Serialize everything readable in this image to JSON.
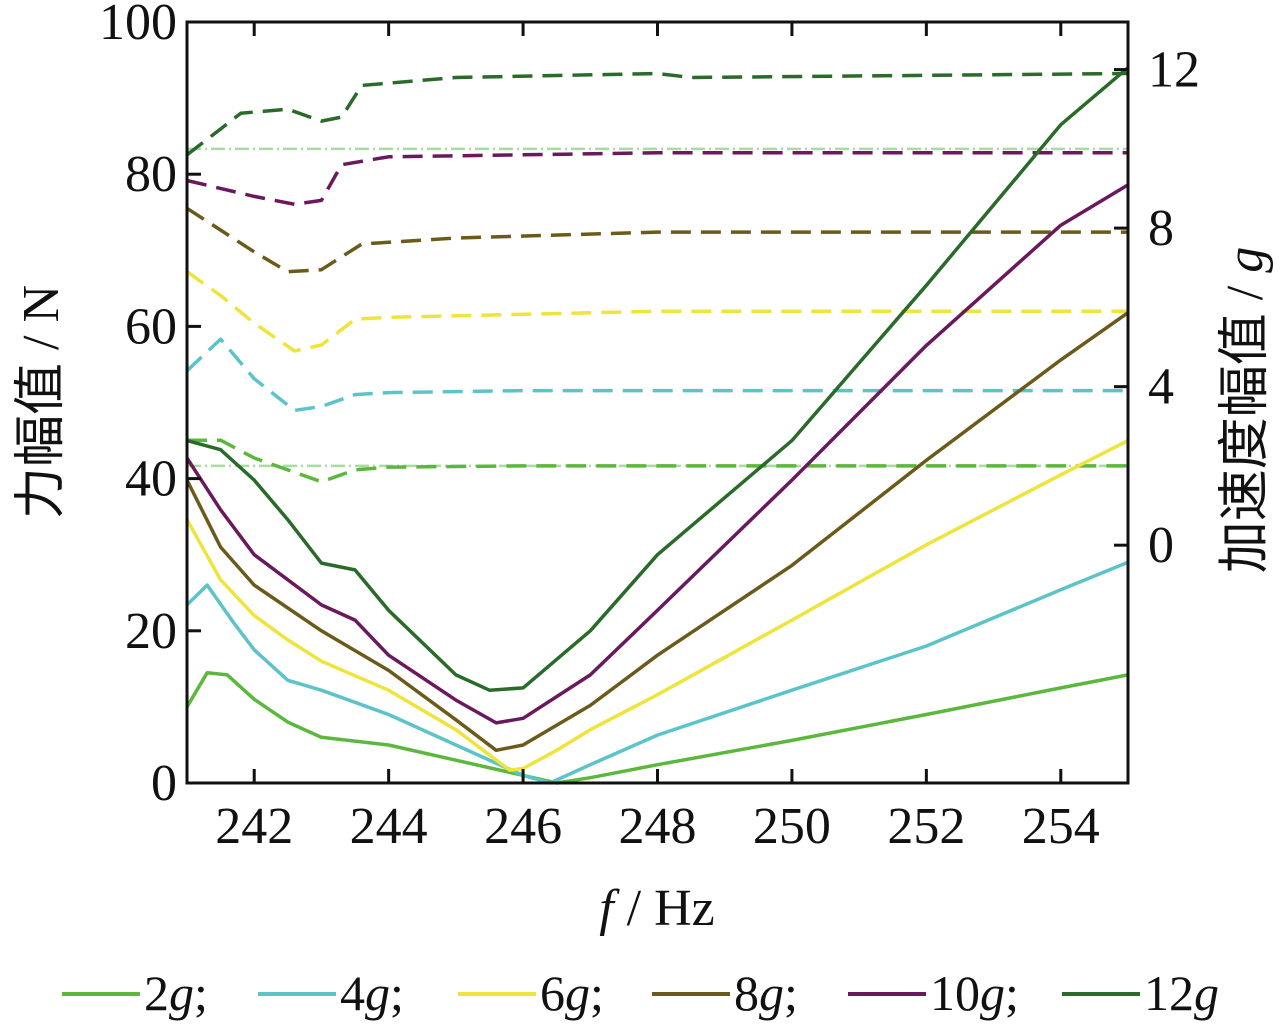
{
  "chart_data": {
    "type": "line",
    "xlabel_italic": "f",
    "xlabel_unit": " / Hz",
    "ylabel": "力幅值 / N",
    "y2label": "加速度幅值 / ",
    "y2label_italic": "g",
    "xlim": [
      241,
      255
    ],
    "ylim": [
      0,
      100
    ],
    "y2lim": [
      -6,
      13.2
    ],
    "xticks": [
      "242",
      "244",
      "246",
      "248",
      "250",
      "252",
      "254"
    ],
    "xtick_values": [
      242,
      244,
      246,
      248,
      250,
      252,
      254
    ],
    "yticks": [
      "0",
      "20",
      "40",
      "60",
      "80",
      "100"
    ],
    "ytick_values": [
      0,
      20,
      40,
      60,
      80,
      100
    ],
    "y2ticks": [
      "0",
      "4",
      "8",
      "12"
    ],
    "y2tick_values": [
      0,
      4,
      8,
      12
    ],
    "legend_placement": "bottom",
    "series": [
      {
        "name": "2g",
        "legend_num": "2",
        "legend_suffix": ";",
        "color": "#5cb83c",
        "force": {
          "x": [
            241,
            241.3,
            241.6,
            242,
            242.5,
            243,
            244,
            245,
            246,
            246.5,
            247,
            248,
            250,
            252,
            254,
            255
          ],
          "y": [
            10,
            14.5,
            14.2,
            11,
            8,
            6,
            5,
            3,
            1,
            0,
            0.7,
            2.4,
            5.6,
            9,
            12.5,
            14.2
          ]
        },
        "accel": {
          "x": [
            241,
            241.5,
            242,
            242.5,
            243,
            243.5,
            244,
            246,
            255
          ],
          "y": [
            2.65,
            2.65,
            2.2,
            1.9,
            1.6,
            1.9,
            1.97,
            2.0,
            2.0
          ]
        }
      },
      {
        "name": "4g",
        "legend_num": "4",
        "legend_suffix": ";",
        "color": "#5cc4c8",
        "force": {
          "x": [
            241,
            241.3,
            241.7,
            242,
            242.5,
            243,
            244,
            245,
            246,
            246.4,
            247,
            248,
            250,
            252,
            254,
            255
          ],
          "y": [
            23.4,
            26,
            21,
            17.5,
            13.5,
            12.2,
            9,
            5,
            1,
            0,
            2.4,
            6.3,
            12.2,
            18,
            25.4,
            29
          ]
        },
        "accel": {
          "x": [
            241,
            241.5,
            242,
            242.6,
            243,
            243.5,
            244,
            246,
            255
          ],
          "y": [
            4.4,
            5.2,
            4.2,
            3.4,
            3.5,
            3.8,
            3.85,
            3.9,
            3.9
          ]
        }
      },
      {
        "name": "6g",
        "legend_num": "6",
        "legend_suffix": ";",
        "color": "#eee43c",
        "force": {
          "x": [
            241,
            241.5,
            242,
            242.5,
            243,
            244,
            245,
            245.8,
            246,
            246.5,
            247,
            248,
            250,
            252,
            254,
            255
          ],
          "y": [
            34.6,
            26.7,
            22,
            18.8,
            16,
            12.2,
            7,
            1.7,
            1.9,
            4.3,
            7,
            11.6,
            21.4,
            31.3,
            40.5,
            45
          ]
        },
        "accel": {
          "x": [
            241,
            241.5,
            242,
            242.6,
            243,
            243.5,
            244,
            248,
            255
          ],
          "y": [
            6.9,
            6.3,
            5.6,
            4.9,
            5.05,
            5.7,
            5.75,
            5.9,
            5.9
          ]
        }
      },
      {
        "name": "8g",
        "legend_num": "8",
        "legend_suffix": ";",
        "color": "#6b5a1a",
        "force": {
          "x": [
            241,
            241.5,
            242,
            243,
            244,
            245,
            245.6,
            246,
            247,
            248,
            250,
            252,
            254,
            255
          ],
          "y": [
            39.8,
            31,
            26,
            20,
            14.8,
            8.3,
            4.3,
            5,
            10.2,
            16.8,
            28.6,
            42.4,
            55.6,
            61.8
          ]
        },
        "accel": {
          "x": [
            241,
            242,
            242.5,
            243,
            243.6,
            245,
            248,
            255
          ],
          "y": [
            8.5,
            7.4,
            6.9,
            6.95,
            7.6,
            7.75,
            7.9,
            7.9
          ]
        }
      },
      {
        "name": "10g",
        "legend_num": "10",
        "legend_suffix": ";",
        "color": "#6a1a5c",
        "force": {
          "x": [
            241,
            241.5,
            242,
            243,
            243.5,
            244,
            245,
            245.6,
            246,
            247,
            248,
            250,
            252,
            254,
            255
          ],
          "y": [
            42.7,
            35.9,
            30,
            23.4,
            21.4,
            16.8,
            10.9,
            7.9,
            8.5,
            14.2,
            22.7,
            39.8,
            57.5,
            73.3,
            78.6
          ]
        },
        "accel": {
          "x": [
            241,
            242,
            242.6,
            243,
            243.3,
            244,
            248,
            255
          ],
          "y": [
            9.2,
            8.8,
            8.6,
            8.7,
            9.6,
            9.8,
            9.9,
            9.9
          ]
        }
      },
      {
        "name": "12g",
        "legend_num": "12",
        "legend_suffix": "",
        "color": "#2a6a2a",
        "force": {
          "x": [
            241,
            241.5,
            242,
            242.5,
            243,
            243.5,
            244,
            245,
            245.5,
            246,
            247,
            248,
            250,
            252,
            254,
            255
          ],
          "y": [
            45,
            43.8,
            39.8,
            34.6,
            28.9,
            28,
            22.7,
            14.2,
            12.2,
            12.5,
            20,
            30,
            45,
            65.4,
            86.5,
            94
          ]
        },
        "accel": {
          "x": [
            241,
            241.5,
            241.8,
            242.5,
            243,
            243.3,
            243.6,
            245,
            248,
            248.5,
            255
          ],
          "y": [
            9.85,
            10.5,
            10.9,
            11.0,
            10.7,
            10.8,
            11.6,
            11.8,
            11.9,
            11.8,
            11.9
          ]
        }
      }
    ],
    "reference_lines_g": [
      2.0,
      10.0
    ],
    "reference_color": "#a8dca0"
  }
}
